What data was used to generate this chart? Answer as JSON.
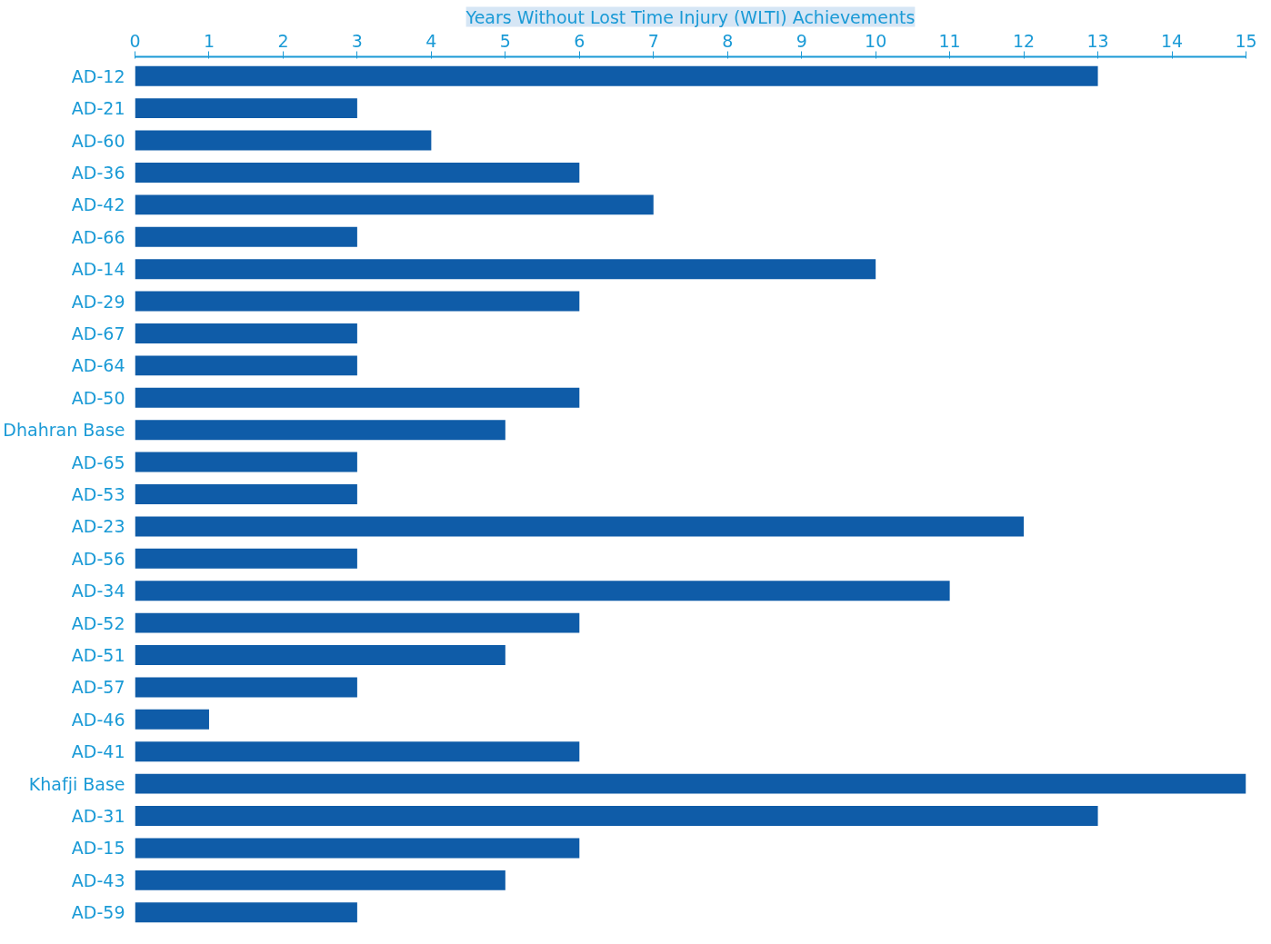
{
  "chart_data": {
    "type": "bar",
    "orientation": "horizontal",
    "title": "Years Without Lost Time Injury (WLTI) Achievements",
    "categories": [
      "AD-12",
      "AD-21",
      "AD-60",
      "AD-36",
      "AD-42",
      "AD-66",
      "AD-14",
      "AD-29",
      "AD-67",
      "AD-64",
      "AD-50",
      "Dhahran Base",
      "AD-65",
      "AD-53",
      "AD-23",
      "AD-56",
      "AD-34",
      "AD-52",
      "AD-51",
      "AD-57",
      "AD-46",
      "AD-41",
      "Khafji Base",
      "AD-31",
      "AD-15",
      "AD-43",
      "AD-59"
    ],
    "values": [
      13,
      3,
      4,
      6,
      7,
      3,
      10,
      6,
      3,
      3,
      6,
      5,
      3,
      3,
      12,
      3,
      11,
      6,
      5,
      3,
      1,
      6,
      15,
      13,
      6,
      5,
      3
    ],
    "color": "#0f5ca8",
    "xlim": [
      0,
      15
    ],
    "xticks": [
      0,
      1,
      2,
      3,
      4,
      5,
      6,
      7,
      8,
      9,
      10,
      11,
      12,
      13,
      14,
      15
    ],
    "grid": false
  }
}
